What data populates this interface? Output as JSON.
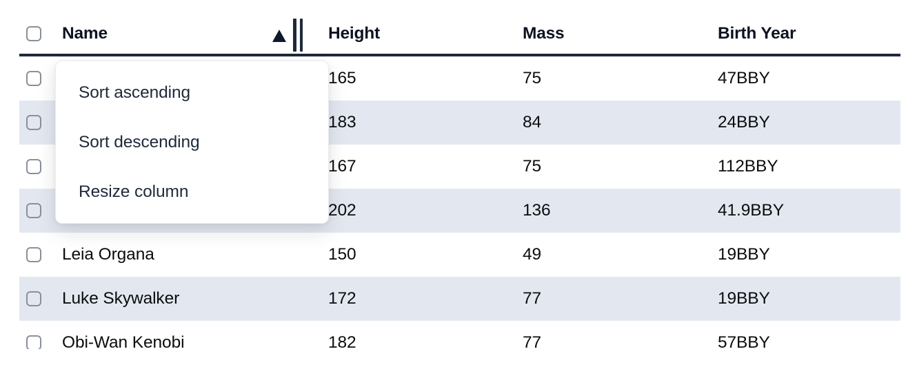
{
  "colors": {
    "header_border": "#1e293b",
    "row_stripe": "#e3e8f0",
    "header_text": "#0d1320",
    "cell_text": "#0b0c0e",
    "menu_text": "#1e2939",
    "checkbox_border": "#8a9099",
    "menu_background": "#ffffff"
  },
  "table": {
    "columns": [
      {
        "key": "name",
        "label": "Name",
        "sorted": "ascending"
      },
      {
        "key": "height",
        "label": "Height"
      },
      {
        "key": "mass",
        "label": "Mass"
      },
      {
        "key": "birth_year",
        "label": "Birth Year"
      }
    ],
    "sort_indicator_icon": "ascending-triangle",
    "resize_handle_icon": "double-vertical-bars",
    "rows": [
      {
        "name": "",
        "height": "165",
        "mass": "75",
        "birth_year": "47BBY",
        "selected": false
      },
      {
        "name": "",
        "height": "183",
        "mass": "84",
        "birth_year": "24BBY",
        "selected": false
      },
      {
        "name": "",
        "height": "167",
        "mass": "75",
        "birth_year": "112BBY",
        "selected": false
      },
      {
        "name": "",
        "height": "202",
        "mass": "136",
        "birth_year": "41.9BBY",
        "selected": false
      },
      {
        "name": "Leia Organa",
        "height": "150",
        "mass": "49",
        "birth_year": "19BBY",
        "selected": false
      },
      {
        "name": "Luke Skywalker",
        "height": "172",
        "mass": "77",
        "birth_year": "19BBY",
        "selected": false
      },
      {
        "name": "Obi-Wan Kenobi",
        "height": "182",
        "mass": "77",
        "birth_year": "57BBY",
        "selected": false
      }
    ]
  },
  "context_menu": {
    "items": [
      {
        "label": "Sort ascending"
      },
      {
        "label": "Sort descending"
      },
      {
        "label": "Resize column"
      }
    ]
  }
}
